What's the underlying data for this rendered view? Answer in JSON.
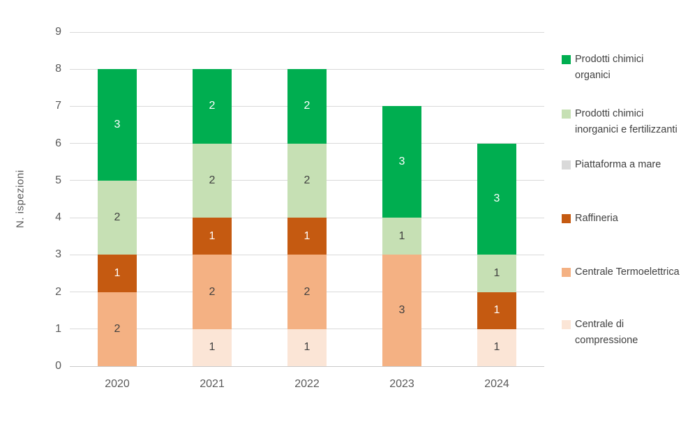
{
  "chart_data": {
    "type": "bar",
    "stacked": true,
    "title": "",
    "xlabel": "",
    "ylabel": "N. ispezioni",
    "ylim": [
      0,
      9
    ],
    "ytick_step": 1,
    "grid": true,
    "legend_position": "right",
    "categories": [
      "2020",
      "2021",
      "2022",
      "2023",
      "2024"
    ],
    "series": [
      {
        "name": "Centrale di compressione",
        "color": "#FBE5D6",
        "label_color": "#404040",
        "values": [
          0,
          1,
          1,
          0,
          1
        ]
      },
      {
        "name": "Centrale Termoelettrica",
        "color": "#F4B183",
        "label_color": "#404040",
        "values": [
          2,
          2,
          2,
          3,
          0
        ]
      },
      {
        "name": "Raffineria",
        "color": "#C55A11",
        "label_color": "#FFFFFF",
        "values": [
          1,
          1,
          1,
          0,
          1
        ]
      },
      {
        "name": "Piattaforma a mare",
        "color": "#D9D9D9",
        "label_color": "#404040",
        "values": [
          0,
          0,
          0,
          0,
          0
        ]
      },
      {
        "name": "Prodotti chimici inorganici e fertilizzanti",
        "color": "#C6E0B4",
        "label_color": "#404040",
        "values": [
          2,
          2,
          2,
          1,
          1
        ]
      },
      {
        "name": "Prodotti chimici organici",
        "color": "#00AE50",
        "label_color": "#FFFFFF",
        "values": [
          3,
          2,
          2,
          3,
          3
        ]
      }
    ],
    "totals": [
      8,
      8,
      8,
      7,
      6
    ],
    "colors": {
      "grid": "#D9D9D9",
      "axis_text": "#595959",
      "legend_text": "#404040"
    }
  }
}
